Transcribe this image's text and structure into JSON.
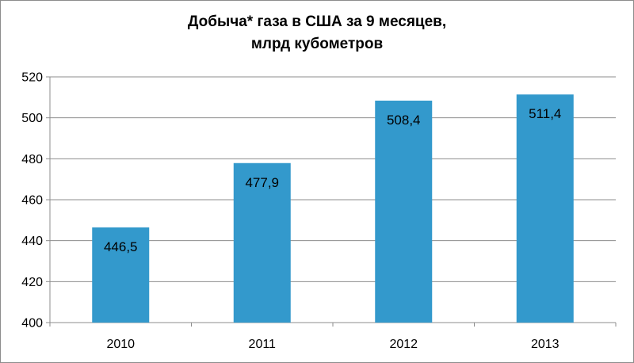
{
  "chart_data": {
    "type": "bar",
    "title_lines": [
      "Добыча* газа в США за 9 месяцев,",
      "млрд кубометров"
    ],
    "categories": [
      "2010",
      "2011",
      "2012",
      "2013"
    ],
    "values": [
      446.5,
      477.9,
      508.4,
      511.4
    ],
    "data_labels": [
      "446,5",
      "477,9",
      "508,4",
      "511,4"
    ],
    "yticks": [
      400,
      420,
      440,
      460,
      480,
      500,
      520
    ],
    "ylim": [
      400,
      520
    ],
    "grid": true,
    "legend": "none",
    "bar_color": "#3399cc"
  }
}
